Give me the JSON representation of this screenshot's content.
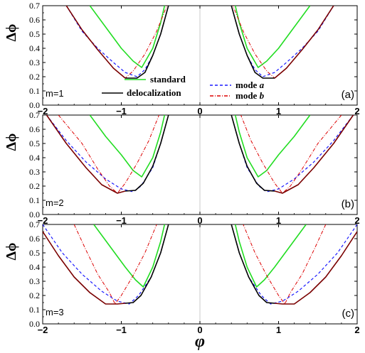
{
  "chart_data": {
    "type": "line",
    "xlabel": "φ",
    "x_ticks": [
      "−2",
      "−1",
      "0",
      "1",
      "2"
    ],
    "y_ticks": [
      "0.0",
      "0.1",
      "0.2",
      "0.3",
      "0.4",
      "0.5",
      "0.6",
      "0.7"
    ],
    "xlim": [
      -2,
      2
    ],
    "ylim": [
      0,
      0.7
    ],
    "legend": [
      {
        "name": "standard",
        "color": "#22dd22",
        "style": "solid"
      },
      {
        "name": "delocalization",
        "color": "#000000",
        "style": "solid"
      },
      {
        "name": "mode ",
        "italic": "a",
        "color": "#1a1aff",
        "style": "dashed"
      },
      {
        "name": "mode ",
        "italic": "b",
        "color": "#dd0000",
        "style": "dashdot"
      }
    ],
    "panels": [
      {
        "ylabel": "Δϕ",
        "m_label": "m=1",
        "panel_label": "(a)",
        "series": {
          "standard": [
            [
              -1.4,
              0.7
            ],
            [
              -1.2,
              0.55
            ],
            [
              -1.0,
              0.4
            ],
            [
              -0.85,
              0.31
            ],
            [
              -0.74,
              0.265
            ],
            [
              -0.6,
              0.4
            ],
            [
              -0.5,
              0.58
            ],
            [
              -0.45,
              0.7
            ]
          ],
          "mode_a": [
            [
              -1.7,
              0.7
            ],
            [
              -1.5,
              0.52
            ],
            [
              -1.3,
              0.4
            ],
            [
              -1.1,
              0.3
            ],
            [
              -0.95,
              0.23
            ],
            [
              -0.8,
              0.2
            ],
            [
              -0.7,
              0.25
            ],
            [
              -0.6,
              0.35
            ],
            [
              -0.5,
              0.5
            ],
            [
              -0.4,
              0.7
            ]
          ],
          "mode_b": [
            [
              -1.7,
              0.7
            ],
            [
              -1.5,
              0.53
            ],
            [
              -1.3,
              0.39
            ],
            [
              -1.1,
              0.26
            ],
            [
              -0.95,
              0.19
            ],
            [
              -0.85,
              0.24
            ],
            [
              -0.7,
              0.36
            ],
            [
              -0.55,
              0.52
            ],
            [
              -0.42,
              0.7
            ]
          ],
          "delocalization": [
            [
              -0.95,
              0.19
            ],
            [
              -0.8,
              0.19
            ],
            [
              -0.7,
              0.23
            ],
            [
              -0.6,
              0.35
            ],
            [
              -0.5,
              0.5
            ],
            [
              -0.4,
              0.7
            ]
          ],
          "dark": [
            [
              -1.7,
              0.7
            ],
            [
              -1.5,
              0.53
            ],
            [
              -1.3,
              0.39
            ],
            [
              -1.1,
              0.26
            ],
            [
              -0.95,
              0.19
            ]
          ]
        }
      },
      {
        "ylabel": "Δϕ",
        "m_label": "m=2",
        "panel_label": "(b)",
        "series": {
          "standard": [
            [
              -1.4,
              0.7
            ],
            [
              -1.2,
              0.55
            ],
            [
              -1.0,
              0.42
            ],
            [
              -0.85,
              0.31
            ],
            [
              -0.74,
              0.265
            ],
            [
              -0.6,
              0.4
            ],
            [
              -0.5,
              0.58
            ],
            [
              -0.45,
              0.7
            ]
          ],
          "mode_a": [
            [
              -1.95,
              0.7
            ],
            [
              -1.7,
              0.52
            ],
            [
              -1.45,
              0.37
            ],
            [
              -1.2,
              0.25
            ],
            [
              -1.0,
              0.18
            ],
            [
              -0.85,
              0.16
            ],
            [
              -0.75,
              0.2
            ],
            [
              -0.6,
              0.33
            ],
            [
              -0.5,
              0.5
            ],
            [
              -0.4,
              0.7
            ]
          ],
          "mode_b": [
            [
              -1.8,
              0.7
            ],
            [
              -1.5,
              0.5
            ],
            [
              -1.3,
              0.32
            ],
            [
              -1.15,
              0.2
            ],
            [
              -1.05,
              0.15
            ],
            [
              -0.95,
              0.22
            ],
            [
              -0.8,
              0.36
            ],
            [
              -0.65,
              0.52
            ],
            [
              -0.52,
              0.7
            ]
          ],
          "delocalization": [
            [
              -0.95,
              0.165
            ],
            [
              -0.82,
              0.17
            ],
            [
              -0.72,
              0.22
            ],
            [
              -0.6,
              0.34
            ],
            [
              -0.5,
              0.5
            ],
            [
              -0.4,
              0.7
            ]
          ],
          "dark": [
            [
              -1.95,
              0.7
            ],
            [
              -1.7,
              0.5
            ],
            [
              -1.45,
              0.33
            ],
            [
              -1.25,
              0.21
            ],
            [
              -1.05,
              0.15
            ],
            [
              -0.95,
              0.165
            ]
          ]
        }
      },
      {
        "ylabel": "Δϕ",
        "m_label": "m=3",
        "panel_label": "(c)",
        "series": {
          "standard": [
            [
              -1.35,
              0.7
            ],
            [
              -1.15,
              0.55
            ],
            [
              -0.95,
              0.4
            ],
            [
              -0.82,
              0.31
            ],
            [
              -0.72,
              0.26
            ],
            [
              -0.6,
              0.4
            ],
            [
              -0.5,
              0.58
            ],
            [
              -0.45,
              0.7
            ]
          ],
          "mode_a": [
            [
              -2.0,
              0.7
            ],
            [
              -1.75,
              0.5
            ],
            [
              -1.5,
              0.35
            ],
            [
              -1.25,
              0.23
            ],
            [
              -1.05,
              0.16
            ],
            [
              -0.9,
              0.14
            ],
            [
              -0.78,
              0.2
            ],
            [
              -0.62,
              0.33
            ],
            [
              -0.5,
              0.5
            ],
            [
              -0.4,
              0.7
            ]
          ],
          "mode_b": [
            [
              -1.6,
              0.7
            ],
            [
              -1.45,
              0.52
            ],
            [
              -1.3,
              0.35
            ],
            [
              -1.15,
              0.22
            ],
            [
              -1.08,
              0.14
            ],
            [
              -1.0,
              0.2
            ],
            [
              -0.85,
              0.34
            ],
            [
              -0.7,
              0.5
            ],
            [
              -0.55,
              0.7
            ]
          ],
          "delocalization": [
            [
              -0.95,
              0.145
            ],
            [
              -0.85,
              0.15
            ],
            [
              -0.75,
              0.2
            ],
            [
              -0.62,
              0.33
            ],
            [
              -0.5,
              0.5
            ],
            [
              -0.4,
              0.7
            ]
          ],
          "dark": [
            [
              -2.0,
              0.65
            ],
            [
              -1.8,
              0.48
            ],
            [
              -1.6,
              0.33
            ],
            [
              -1.4,
              0.22
            ],
            [
              -1.2,
              0.14
            ],
            [
              -1.05,
              0.14
            ],
            [
              -0.95,
              0.145
            ]
          ]
        }
      }
    ]
  }
}
